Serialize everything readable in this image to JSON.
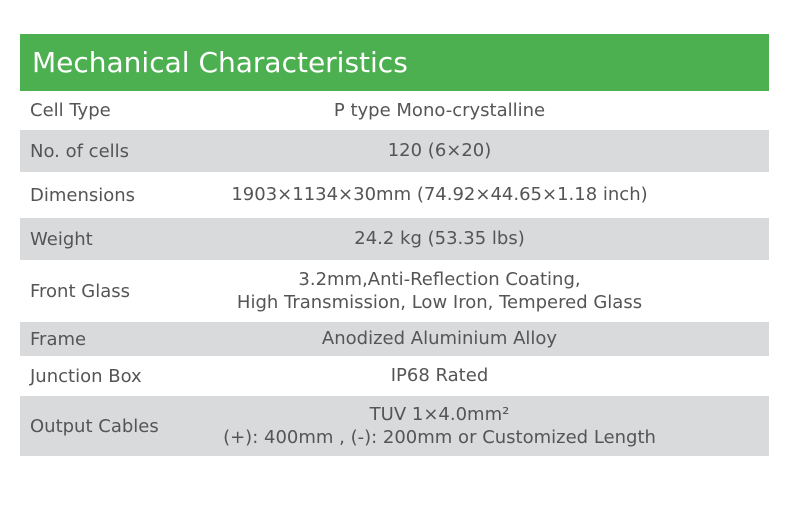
{
  "title": "Mechanical Characteristics",
  "rows": [
    {
      "label": "Cell  Type",
      "lines": [
        "P type Mono-crystalline"
      ]
    },
    {
      "label": "No. of cells",
      "lines": [
        "120 (6×20)"
      ]
    },
    {
      "label": "Dimensions",
      "lines": [
        "1903×1134×30mm (74.92×44.65×1.18 inch)"
      ]
    },
    {
      "label": "Weight",
      "lines": [
        "24.2 kg (53.35 lbs)"
      ]
    },
    {
      "label": "Front Glass",
      "lines": [
        "3.2mm,Anti-Reflection Coating,",
        "High Transmission, Low Iron, Tempered Glass"
      ]
    },
    {
      "label": "Frame",
      "lines": [
        "Anodized Aluminium Alloy"
      ]
    },
    {
      "label": "Junction Box",
      "lines": [
        "IP68 Rated"
      ]
    },
    {
      "label": "Output Cables",
      "lines": [
        "TUV  1×4.0mm²",
        "(+): 400mm , (-): 200mm or Customized Length"
      ]
    }
  ],
  "colors": {
    "header_bg": "#4caf50",
    "row_gray": "#d9dadc",
    "text": "#555555"
  }
}
